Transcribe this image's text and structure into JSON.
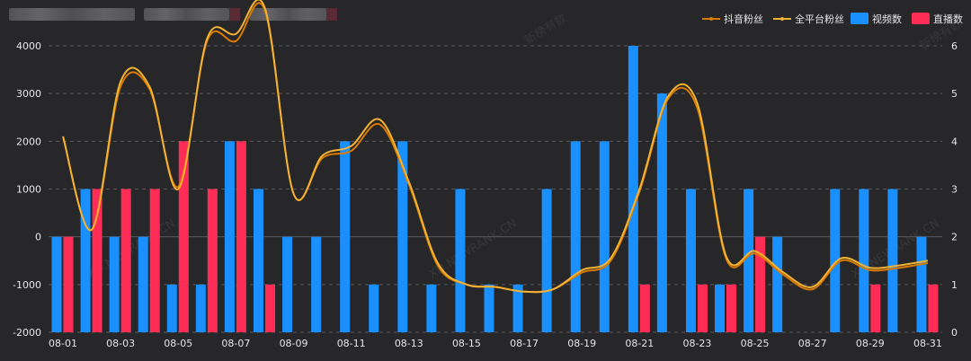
{
  "colors": {
    "background": "#27272a",
    "grid": "#5a5a5e",
    "axis_text": "#e6e6e6",
    "douyin_fans": "#d97b00",
    "all_platform_fans": "#f2b233",
    "videos": "#1a90ff",
    "lives": "#ff2d55"
  },
  "watermark": {
    "text_cn": "新榜有数",
    "text_en": "XD.NEWRANK.CN"
  },
  "chart_data": {
    "type": "bar",
    "title": "",
    "categories": [
      "08-01",
      "08-02",
      "08-03",
      "08-04",
      "08-05",
      "08-06",
      "08-07",
      "08-08",
      "08-09",
      "08-10",
      "08-11",
      "08-12",
      "08-13",
      "08-14",
      "08-15",
      "08-16",
      "08-17",
      "08-18",
      "08-19",
      "08-20",
      "08-21",
      "08-22",
      "08-23",
      "08-24",
      "08-25",
      "08-26",
      "08-27",
      "08-28",
      "08-29",
      "08-30",
      "08-31"
    ],
    "x_tick_labels": [
      "08-01",
      "08-03",
      "08-05",
      "08-07",
      "08-09",
      "08-11",
      "08-13",
      "08-15",
      "08-17",
      "08-19",
      "08-21",
      "08-23",
      "08-25",
      "08-27",
      "08-29",
      "08-31"
    ],
    "y_left": {
      "min": -2000,
      "max": 4000,
      "ticks": [
        "-2000",
        "-1000",
        "0",
        "1000",
        "2000",
        "3000",
        "4000"
      ]
    },
    "y_right": {
      "min": 0,
      "max": 6,
      "ticks": [
        "0",
        "1",
        "2",
        "3",
        "4",
        "5",
        "6"
      ]
    },
    "grid": true,
    "legend_position": "top-right",
    "series": [
      {
        "name": "抖音粉丝",
        "kind": "line",
        "axis": "left",
        "values": [
          2100,
          150,
          3150,
          3100,
          1050,
          4100,
          4100,
          4750,
          900,
          1650,
          1800,
          2350,
          1100,
          -600,
          -1000,
          -1050,
          -1150,
          -1100,
          -750,
          -500,
          950,
          2900,
          2700,
          -450,
          -350,
          -800,
          -1100,
          -500,
          -700,
          -650,
          -550
        ]
      },
      {
        "name": "全平台粉丝",
        "kind": "line",
        "axis": "left",
        "values": [
          2100,
          150,
          3250,
          3150,
          1000,
          4150,
          4250,
          4800,
          900,
          1700,
          1900,
          2450,
          1150,
          -550,
          -1000,
          -1050,
          -1150,
          -1100,
          -700,
          -450,
          1000,
          2950,
          2800,
          -400,
          -300,
          -750,
          -1050,
          -450,
          -650,
          -600,
          -500
        ]
      },
      {
        "name": "视频数",
        "kind": "bar",
        "axis": "right",
        "values": [
          2,
          3,
          2,
          2,
          1,
          1,
          4,
          3,
          2,
          2,
          4,
          1,
          4,
          1,
          3,
          1,
          1,
          3,
          4,
          4,
          6,
          5,
          3,
          1,
          3,
          2,
          0,
          3,
          3,
          3,
          2
        ]
      },
      {
        "name": "直播数",
        "kind": "bar",
        "axis": "right",
        "values": [
          2,
          3,
          3,
          3,
          4,
          3,
          4,
          1,
          0,
          0,
          0,
          0,
          0,
          0,
          0,
          0,
          0,
          0,
          0,
          0,
          1,
          0,
          1,
          1,
          2,
          0,
          0,
          0,
          1,
          0,
          1
        ]
      }
    ]
  }
}
